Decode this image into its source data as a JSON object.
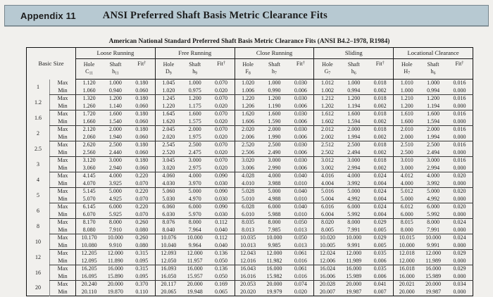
{
  "page": {
    "appendix_label": "Appendix 11",
    "appendix_title": "ANSI Preferred Shaft Basis Metric Clearance Fits"
  },
  "table": {
    "title": "American National Standard Preferred Shaft Basis Metric Clearance Fits (ANSI B4.2–1978, R1984)",
    "basic_size_label": "Basic Size",
    "column_labels": {
      "hole": "Hole",
      "shaft": "Shaft",
      "fit": "Fit",
      "fit_dagger": "†"
    },
    "row_labels": {
      "max": "Max",
      "min": "Min"
    },
    "groups": [
      {
        "name": "Loose Running",
        "hole_letter": "C",
        "hole_sub": "11",
        "shaft_letter": "h",
        "shaft_sub": "11"
      },
      {
        "name": "Free Running",
        "hole_letter": "D",
        "hole_sub": "9",
        "shaft_letter": "h",
        "shaft_sub": "9"
      },
      {
        "name": "Close Running",
        "hole_letter": "F",
        "hole_sub": "8",
        "shaft_letter": "h",
        "shaft_sub": "7"
      },
      {
        "name": "Sliding",
        "hole_letter": "G",
        "hole_sub": "7",
        "shaft_letter": "h",
        "shaft_sub": "6"
      },
      {
        "name": "Locational Clearance",
        "hole_letter": "H",
        "hole_sub": "7",
        "shaft_letter": "h",
        "shaft_sub": "6"
      }
    ],
    "rows": [
      {
        "size": "1",
        "max": [
          "1.120",
          "1.000",
          "0.180",
          "1.045",
          "1.000",
          "0.070",
          "1.020",
          "1.000",
          "0.030",
          "1.012",
          "1.000",
          "0.018",
          "1.010",
          "1.000",
          "0.016"
        ],
        "min": [
          "1.060",
          "0.940",
          "0.060",
          "1.020",
          "0.975",
          "0.020",
          "1.006",
          "0.990",
          "0.006",
          "1.002",
          "0.994",
          "0.002",
          "1.000",
          "0.994",
          "0.000"
        ]
      },
      {
        "size": "1.2",
        "max": [
          "1.320",
          "1.200",
          "0.180",
          "1.245",
          "1.200",
          "0.070",
          "1.220",
          "1.200",
          "0.030",
          "1.212",
          "1.200",
          "0.018",
          "1.210",
          "1.200",
          "0.016"
        ],
        "min": [
          "1.260",
          "1.140",
          "0.060",
          "1.220",
          "1.175",
          "0.020",
          "1.206",
          "1.190",
          "0.006",
          "1.202",
          "1.194",
          "0.002",
          "1.200",
          "1.194",
          "0.000"
        ]
      },
      {
        "size": "1.6",
        "max": [
          "1.720",
          "1.600",
          "0.180",
          "1.645",
          "1.600",
          "0.070",
          "1.620",
          "1.600",
          "0.030",
          "1.612",
          "1.600",
          "0.018",
          "1.610",
          "1.600",
          "0.016"
        ],
        "min": [
          "1.660",
          "1.540",
          "0.060",
          "1.620",
          "1.575",
          "0.020",
          "1.606",
          "1.590",
          "0.006",
          "1.602",
          "1.594",
          "0.002",
          "1.600",
          "1.594",
          "0.000"
        ]
      },
      {
        "size": "2",
        "max": [
          "2.120",
          "2.000",
          "0.180",
          "2.045",
          "2.000",
          "0.070",
          "2.020",
          "2.000",
          "0.030",
          "2.012",
          "2.000",
          "0.018",
          "2.010",
          "2.000",
          "0.016"
        ],
        "min": [
          "2.060",
          "1.940",
          "0.060",
          "2.020",
          "1.975",
          "0.020",
          "2.006",
          "1.990",
          "0.006",
          "2.002",
          "1.994",
          "0.002",
          "2.000",
          "1.994",
          "0.000"
        ]
      },
      {
        "size": "2.5",
        "max": [
          "2.620",
          "2.500",
          "0.180",
          "2.545",
          "2.500",
          "0.070",
          "2.520",
          "2.500",
          "0.030",
          "2.512",
          "2.500",
          "0.018",
          "2.510",
          "2.500",
          "0.016"
        ],
        "min": [
          "2.560",
          "2.440",
          "0.060",
          "2.520",
          "2.475",
          "0.020",
          "2.506",
          "2.490",
          "0.006",
          "2.502",
          "2.494",
          "0.002",
          "2.500",
          "2.494",
          "0.000"
        ]
      },
      {
        "size": "3",
        "max": [
          "3.120",
          "3.000",
          "0.180",
          "3.045",
          "3.000",
          "0.070",
          "3.020",
          "3.000",
          "0.030",
          "3.012",
          "3.000",
          "0.018",
          "3.010",
          "3.000",
          "0.016"
        ],
        "min": [
          "3.060",
          "2.940",
          "0.060",
          "3.020",
          "2.975",
          "0.020",
          "3.006",
          "2.990",
          "0.006",
          "3.002",
          "2.994",
          "0.002",
          "3.000",
          "2.994",
          "0.000"
        ]
      },
      {
        "size": "4",
        "max": [
          "4.145",
          "4.000",
          "0.220",
          "4.060",
          "4.000",
          "0.090",
          "4.028",
          "4.000",
          "0.040",
          "4.016",
          "4.000",
          "0.024",
          "4.012",
          "4.000",
          "0.020"
        ],
        "min": [
          "4.070",
          "3.925",
          "0.070",
          "4.030",
          "3.970",
          "0.030",
          "4.010",
          "3.988",
          "0.010",
          "4.004",
          "3.992",
          "0.004",
          "4.000",
          "3.992",
          "0.000"
        ]
      },
      {
        "size": "5",
        "max": [
          "5.145",
          "5.000",
          "0.220",
          "5.060",
          "5.000",
          "0.090",
          "5.028",
          "5.000",
          "0.040",
          "5.016",
          "5.000",
          "0.024",
          "5.012",
          "5.000",
          "0.020"
        ],
        "min": [
          "5.070",
          "4.925",
          "0.070",
          "5.030",
          "4.970",
          "0.030",
          "5.010",
          "4.988",
          "0.010",
          "5.004",
          "4.992",
          "0.004",
          "5.000",
          "4.992",
          "0.000"
        ]
      },
      {
        "size": "6",
        "max": [
          "6.145",
          "6.000",
          "0.220",
          "6.060",
          "6.000",
          "0.090",
          "6.028",
          "6.000",
          "0.040",
          "6.016",
          "6.000",
          "0.024",
          "6.012",
          "6.000",
          "0.020"
        ],
        "min": [
          "6.070",
          "5.925",
          "0.070",
          "6.030",
          "5.970",
          "0.030",
          "6.010",
          "5.988",
          "0.010",
          "6.004",
          "5.992",
          "0.004",
          "6.000",
          "5.992",
          "0.000"
        ]
      },
      {
        "size": "8",
        "max": [
          "8.170",
          "8.000",
          "0.260",
          "8.076",
          "8.000",
          "0.112",
          "8.035",
          "8.000",
          "0.050",
          "8.020",
          "8.000",
          "0.029",
          "8.015",
          "8.000",
          "0.024"
        ],
        "min": [
          "8.080",
          "7.910",
          "0.080",
          "8.040",
          "7.964",
          "0.040",
          "8.013",
          "7.985",
          "0.013",
          "8.005",
          "7.991",
          "0.005",
          "8.000",
          "7.991",
          "0.000"
        ]
      },
      {
        "size": "10",
        "max": [
          "10.170",
          "10.000",
          "0.260",
          "10.076",
          "10.000",
          "0.112",
          "10.035",
          "10.000",
          "0.050",
          "10.020",
          "10.000",
          "0.029",
          "10.015",
          "10.000",
          "0.024"
        ],
        "min": [
          "10.080",
          "9.910",
          "0.080",
          "10.040",
          "9.964",
          "0.040",
          "10.013",
          "9.985",
          "0.013",
          "10.005",
          "9.991",
          "0.005",
          "10.000",
          "9.991",
          "0.000"
        ]
      },
      {
        "size": "12",
        "max": [
          "12.205",
          "12.000",
          "0.315",
          "12.093",
          "12.000",
          "0.136",
          "12.043",
          "12.000",
          "0.061",
          "12.024",
          "12.000",
          "0.035",
          "12.018",
          "12.000",
          "0.029"
        ],
        "min": [
          "12.095",
          "11.890",
          "0.095",
          "12.050",
          "11.957",
          "0.050",
          "12.016",
          "11.982",
          "0.016",
          "12.006",
          "11.989",
          "0.006",
          "12.000",
          "11.989",
          "0.000"
        ]
      },
      {
        "size": "16",
        "max": [
          "16.205",
          "16.000",
          "0.315",
          "16.093",
          "16.000",
          "0.136",
          "16.043",
          "16.000",
          "0.061",
          "16.024",
          "16.000",
          "0.035",
          "16.018",
          "16.000",
          "0.029"
        ],
        "min": [
          "16.095",
          "15.890",
          "0.095",
          "16.050",
          "15.957",
          "0.050",
          "16.016",
          "15.982",
          "0.016",
          "16.006",
          "15.989",
          "0.006",
          "16.000",
          "15.989",
          "0.000"
        ]
      },
      {
        "size": "20",
        "max": [
          "20.240",
          "20.000",
          "0.370",
          "20.117",
          "20.000",
          "0.169",
          "20.053",
          "20.000",
          "0.074",
          "20.028",
          "20.000",
          "0.041",
          "20.021",
          "20.000",
          "0.034"
        ],
        "min": [
          "20.110",
          "19.870",
          "0.110",
          "20.065",
          "19.948",
          "0.065",
          "20.020",
          "19.979",
          "0.020",
          "20.007",
          "19.987",
          "0.007",
          "20.000",
          "19.987",
          "0.000"
        ]
      }
    ]
  }
}
